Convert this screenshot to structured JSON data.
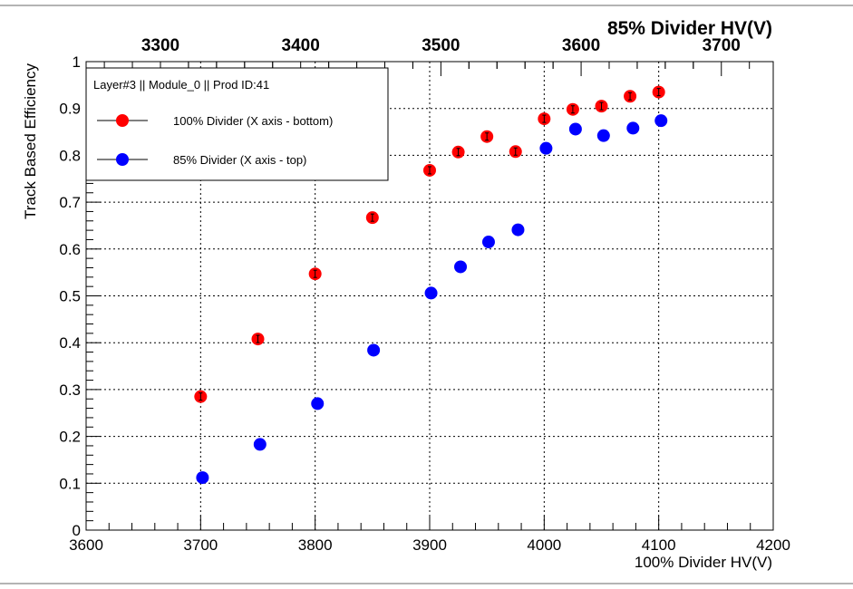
{
  "chart_data": {
    "type": "scatter",
    "xlabel": "100% Divider HV(V)",
    "ylabel": "Track Based Efficiency",
    "x2label": "85% Divider HV(V)",
    "xlim": [
      3600,
      4200
    ],
    "ylim": [
      0,
      1
    ],
    "x2lim": [
      3247,
      3737
    ],
    "x_ticks": [
      3600,
      3700,
      3800,
      3900,
      4000,
      4100,
      4200
    ],
    "y_ticks": [
      0,
      0.1,
      0.2,
      0.3,
      0.4,
      0.5,
      0.6,
      0.7,
      0.8,
      0.9,
      1
    ],
    "x2_ticks": [
      3300,
      3400,
      3500,
      3600,
      3700
    ],
    "grid": true,
    "legend_position": "top-left",
    "legend_title": "Layer#3 || Module_0 || Prod ID:41",
    "series": [
      {
        "name": "100% Divider (X axis - bottom)",
        "color": "#ff0000",
        "axis": "bottom",
        "x": [
          3700,
          3750,
          3800,
          3850,
          3900,
          3925,
          3950,
          3975,
          4000,
          4025,
          4050,
          4075,
          4100
        ],
        "y": [
          0.285,
          0.408,
          0.547,
          0.667,
          0.768,
          0.807,
          0.84,
          0.808,
          0.878,
          0.898,
          0.905,
          0.926,
          0.935
        ]
      },
      {
        "name": "85% Divider (X axis - top)",
        "color": "#0000ff",
        "axis": "top",
        "x": [
          3330,
          3371,
          3412,
          3452,
          3493,
          3514,
          3534,
          3555,
          3575,
          3596,
          3616,
          3637,
          3657
        ],
        "y": [
          0.112,
          0.183,
          0.27,
          0.384,
          0.506,
          0.562,
          0.615,
          0.641,
          0.815,
          0.856,
          0.842,
          0.858,
          0.874
        ]
      }
    ]
  }
}
